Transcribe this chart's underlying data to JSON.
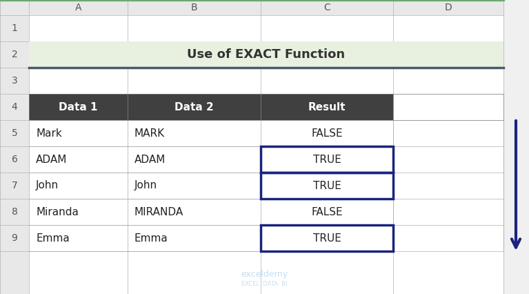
{
  "title": "Use of EXACT Function",
  "title_bg": "#e8f0e0",
  "title_border": "#4a5a6a",
  "col_headers": [
    "A",
    "B",
    "C",
    "D"
  ],
  "table_headers": [
    "Data 1",
    "Data 2",
    "Result"
  ],
  "table_header_bg": "#404040",
  "table_header_fg": "#ffffff",
  "rows": [
    [
      "Mark",
      "MARK",
      "FALSE"
    ],
    [
      "ADAM",
      "ADAM",
      "TRUE"
    ],
    [
      "John",
      "John",
      "TRUE"
    ],
    [
      "Miranda",
      "MIRANDA",
      "FALSE"
    ],
    [
      "Emma",
      "Emma",
      "TRUE"
    ]
  ],
  "highlighted_rows": [
    1,
    2,
    4
  ],
  "highlight_border": "#1a237e",
  "grid_color": "#b0b0b0",
  "header_col_bg": "#e8e8e8",
  "spreadsheet_border": "#6aaa6a",
  "arrow_color": "#1a237e",
  "watermark": "exceldemy",
  "watermark_sub": "EXCEL  DATA  BI"
}
